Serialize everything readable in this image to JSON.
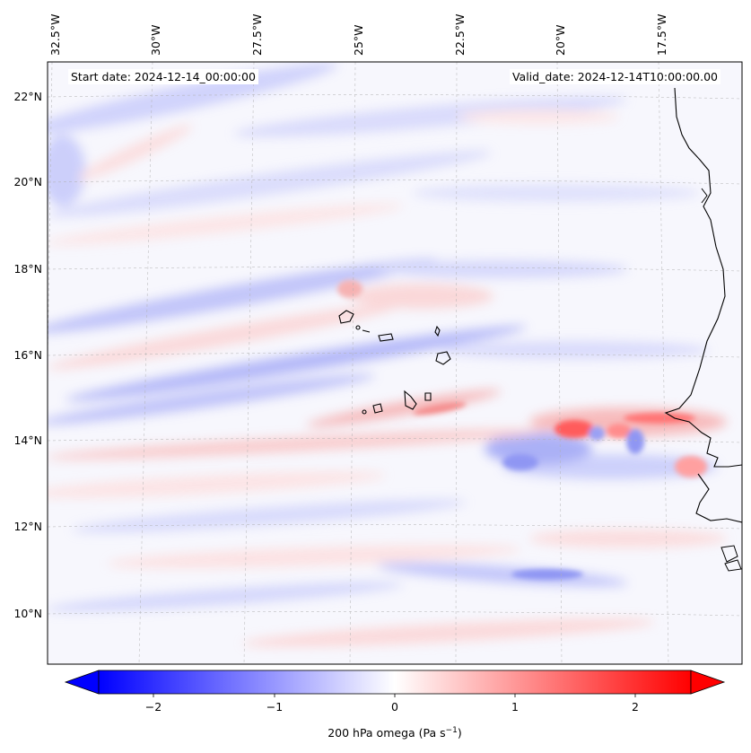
{
  "header": {
    "start_date": "Start date: 2024-12-14_00:00:00",
    "valid_date": "Valid_date: 2024-12-14T10:00:00.00"
  },
  "map": {
    "lon_labels": [
      "32.5°W",
      "30°W",
      "27.5°W",
      "25°W",
      "22.5°W",
      "20°W",
      "17.5°W"
    ],
    "lat_labels": [
      "22°N",
      "20°N",
      "18°N",
      "16°N",
      "14°N",
      "12°N",
      "10°N"
    ],
    "colors": {
      "negative": "#0000ff",
      "neutral": "#ffffff",
      "positive": "#ff0000",
      "coast": "#000000",
      "grid": "#b0b0b0"
    }
  },
  "colorbar": {
    "ticks": [
      "−2",
      "−1",
      "0",
      "1",
      "2"
    ],
    "label": "200 hPa omega (Pa s",
    "label_sup": "−1",
    "label_end": ")"
  }
}
